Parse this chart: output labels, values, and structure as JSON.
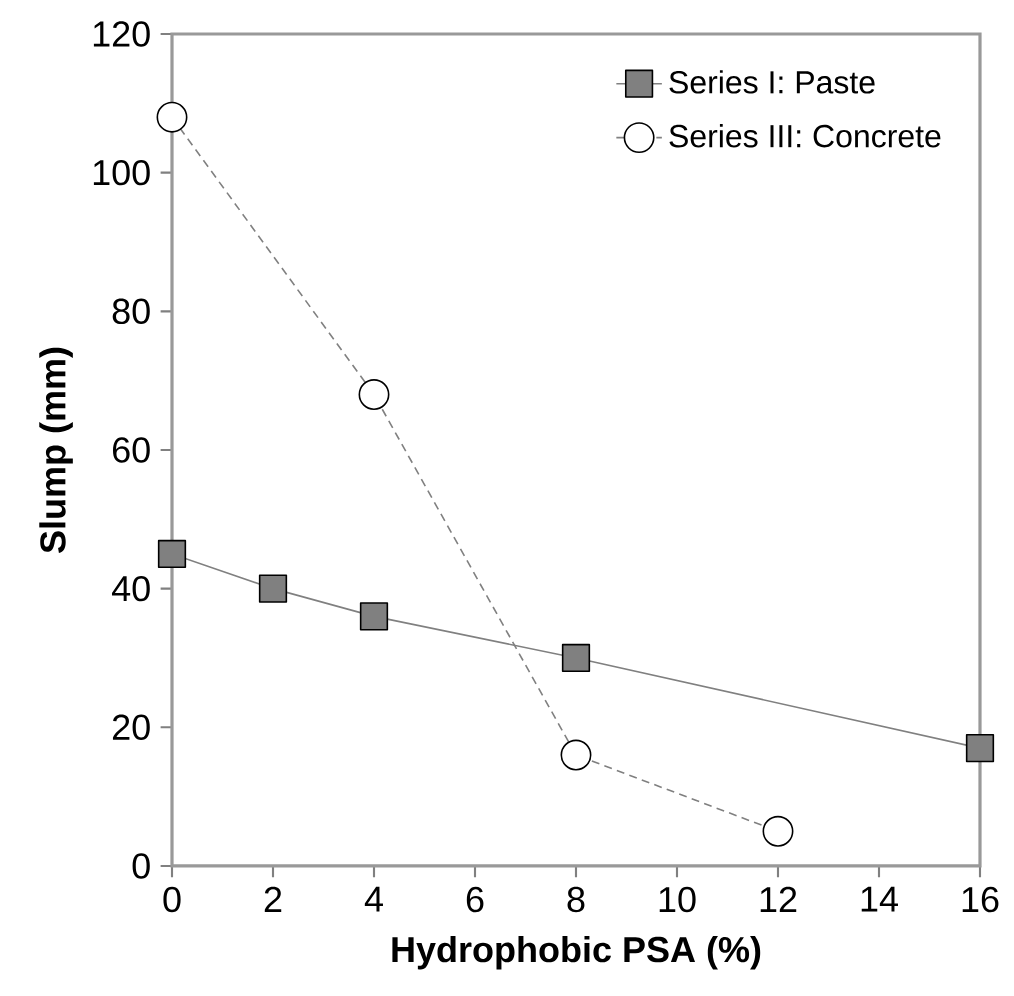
{
  "chart_data": {
    "type": "line",
    "xlabel": "Hydrophobic PSA (%)",
    "ylabel": "Slump (mm)",
    "xlim": [
      0,
      16
    ],
    "ylim": [
      0,
      120
    ],
    "xticks": [
      0,
      2,
      4,
      6,
      8,
      10,
      12,
      14,
      16
    ],
    "yticks": [
      0,
      20,
      40,
      60,
      80,
      100,
      120
    ],
    "grid": false,
    "legend": "top right",
    "series": [
      {
        "name": "Series I: Paste",
        "color": "#808080",
        "x": [
          0,
          2,
          4,
          8,
          16
        ],
        "values": [
          45,
          40,
          36,
          30,
          17
        ],
        "marker": "square",
        "line_style": "solid"
      },
      {
        "name": "Series III: Concrete",
        "color": "#ffffff",
        "x": [
          0,
          4,
          8,
          12
        ],
        "values": [
          108,
          68,
          16,
          5
        ],
        "marker": "circle",
        "line_style": "dashed"
      }
    ]
  }
}
